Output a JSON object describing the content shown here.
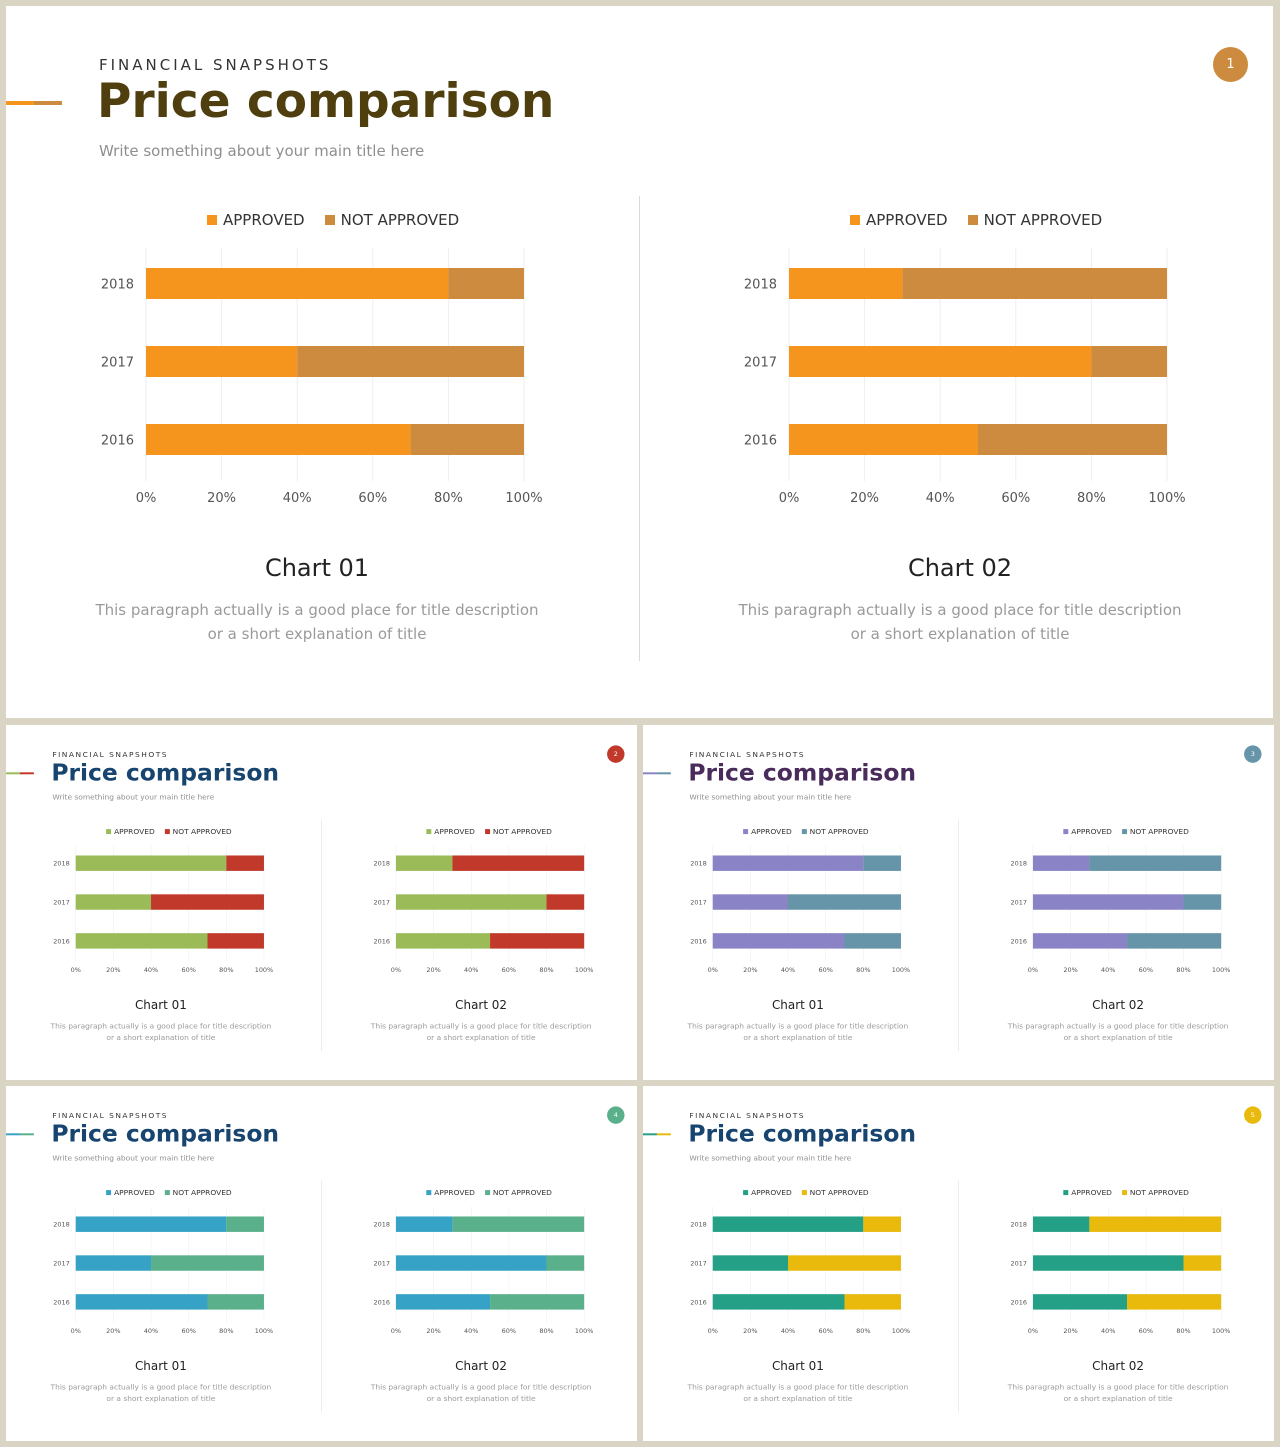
{
  "slides": [
    {
      "kicker": "FINANCIAL SNAPSHOTS",
      "title": "Price comparison",
      "subtitle": "Write something about your main title here",
      "page_number": "1",
      "colors": {
        "title": "#4f3f0e",
        "approved": "#f6951d",
        "not_approved": "#cd8b3f",
        "badge": "#cd8b3f",
        "accent_a": "#f6951d",
        "accent_b": "#cd8b3f"
      }
    },
    {
      "kicker": "FINANCIAL SNAPSHOTS",
      "title": "Price comparison",
      "subtitle": "Write something about your main title here",
      "page_number": "2",
      "colors": {
        "title": "#17456f",
        "approved": "#9bbb59",
        "not_approved": "#c0392b",
        "badge": "#c0392b",
        "accent_a": "#9bbb59",
        "accent_b": "#c0392b"
      }
    },
    {
      "kicker": "FINANCIAL SNAPSHOTS",
      "title": "Price comparison",
      "subtitle": "Write something about your main title here",
      "page_number": "3",
      "colors": {
        "title": "#4a2c5c",
        "approved": "#8a84c7",
        "not_approved": "#6694a8",
        "badge": "#6694a8",
        "accent_a": "#8a84c7",
        "accent_b": "#6694a8"
      }
    },
    {
      "kicker": "FINANCIAL SNAPSHOTS",
      "title": "Price comparison",
      "subtitle": "Write something about your main title here",
      "page_number": "4",
      "colors": {
        "title": "#17456f",
        "approved": "#36a2c5",
        "not_approved": "#5bb08c",
        "badge": "#5bb08c",
        "accent_a": "#36a2c5",
        "accent_b": "#5bb08c"
      }
    },
    {
      "kicker": "FINANCIAL SNAPSHOTS",
      "title": "Price comparison",
      "subtitle": "Write something about your main title here",
      "page_number": "5",
      "colors": {
        "title": "#17456f",
        "approved": "#23a085",
        "not_approved": "#e9b90c",
        "badge": "#e9b90c",
        "accent_a": "#23a085",
        "accent_b": "#e9b90c"
      }
    }
  ],
  "chart_data": [
    {
      "type": "bar",
      "orientation": "horizontal",
      "stacked": "percent",
      "caption": "Chart 01",
      "description": "This paragraph  actually is a good place for title description or a short explanation of title",
      "categories": [
        "2018",
        "2017",
        "2016"
      ],
      "series": [
        {
          "name": "APPROVED",
          "values": [
            80,
            40,
            70
          ]
        },
        {
          "name": "NOT APPROVED",
          "values": [
            20,
            60,
            30
          ]
        }
      ],
      "x_ticks": [
        "0%",
        "20%",
        "40%",
        "60%",
        "80%",
        "100%"
      ],
      "xlim": [
        0,
        100
      ],
      "legend": "top-center",
      "grid": true
    },
    {
      "type": "bar",
      "orientation": "horizontal",
      "stacked": "percent",
      "caption": "Chart 02",
      "description": "This paragraph  actually is a good place for title description or a short explanation of title",
      "categories": [
        "2018",
        "2017",
        "2016"
      ],
      "series": [
        {
          "name": "APPROVED",
          "values": [
            30,
            80,
            50
          ]
        },
        {
          "name": "NOT APPROVED",
          "values": [
            70,
            20,
            50
          ]
        }
      ],
      "x_ticks": [
        "0%",
        "20%",
        "40%",
        "60%",
        "80%",
        "100%"
      ],
      "xlim": [
        0,
        100
      ],
      "legend": "top-center",
      "grid": true
    }
  ]
}
